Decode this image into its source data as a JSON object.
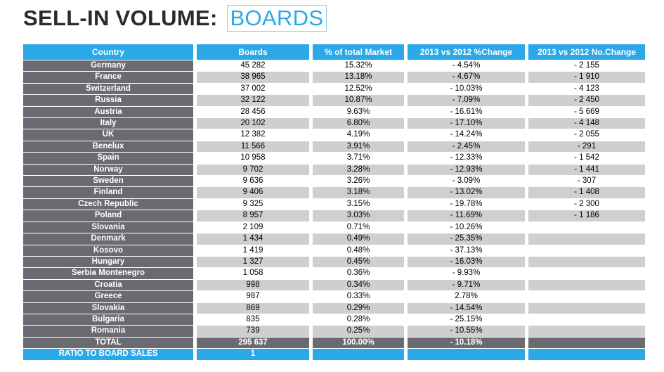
{
  "title": {
    "main": "SELL-IN VOLUME:",
    "highlight": "BOARDS"
  },
  "headers": [
    "Country",
    "Boards",
    "% of total Market",
    "2013 vs 2012 %Change",
    "2013 vs 2012 No.Change"
  ],
  "rows": [
    [
      "Germany",
      "45 282",
      "15.32%",
      "- 4.54%",
      "- 2 155"
    ],
    [
      "France",
      "38 965",
      "13.18%",
      "- 4.67%",
      "- 1 910"
    ],
    [
      "Switzerland",
      "37 002",
      "12.52%",
      "- 10.03%",
      "- 4 123"
    ],
    [
      "Russia",
      "32 122",
      "10.87%",
      "- 7.09%",
      "- 2 450"
    ],
    [
      "Austria",
      "28 456",
      "9.63%",
      "- 16.61%",
      "- 5 669"
    ],
    [
      "Italy",
      "20 102",
      "6.80%",
      "- 17.10%",
      "- 4 148"
    ],
    [
      "UK",
      "12 382",
      "4.19%",
      "- 14.24%",
      "- 2 055"
    ],
    [
      "Benelux",
      "11 566",
      "3.91%",
      "- 2.45%",
      "- 291"
    ],
    [
      "Spain",
      "10 958",
      "3.71%",
      "- 12.33%",
      "- 1 542"
    ],
    [
      "Norway",
      "9 702",
      "3.28%",
      "- 12.93%",
      "- 1 441"
    ],
    [
      "Sweden",
      "9 636",
      "3.26%",
      "- 3.09%",
      "- 307"
    ],
    [
      "Finland",
      "9 406",
      "3.18%",
      "- 13.02%",
      "- 1 408"
    ],
    [
      "Czech Republic",
      "9 325",
      "3.15%",
      "- 19.78%",
      "- 2 300"
    ],
    [
      "Poland",
      "8 957",
      "3.03%",
      "- 11.69%",
      "- 1 186"
    ],
    [
      "Slovania",
      "2 109",
      "0.71%",
      "- 10.26%",
      ""
    ],
    [
      "Denmark",
      "1 434",
      "0.49%",
      "- 25.35%",
      ""
    ],
    [
      "Kosovo",
      "1 419",
      "0.48%",
      "- 37.13%",
      ""
    ],
    [
      "Hungary",
      "1 327",
      "0.45%",
      "- 16.03%",
      ""
    ],
    [
      "Serbia Montenegro",
      "1 058",
      "0.36%",
      "- 9.93%",
      ""
    ],
    [
      "Croatia",
      "998",
      "0.34%",
      "- 9.71%",
      ""
    ],
    [
      "Greece",
      "987",
      "0.33%",
      "2.78%",
      ""
    ],
    [
      "Slovakia",
      "869",
      "0.29%",
      "- 14.54%",
      ""
    ],
    [
      "Bulgaria",
      "835",
      "0.28%",
      "- 25.15%",
      ""
    ],
    [
      "Romania",
      "739",
      "0.25%",
      "- 10.55%",
      ""
    ]
  ],
  "total": [
    "TOTAL",
    "295 637",
    "100.00%",
    "- 10.18%",
    ""
  ],
  "ratio": [
    "RATIO TO BOARD SALES",
    "1",
    "",
    "",
    ""
  ]
}
